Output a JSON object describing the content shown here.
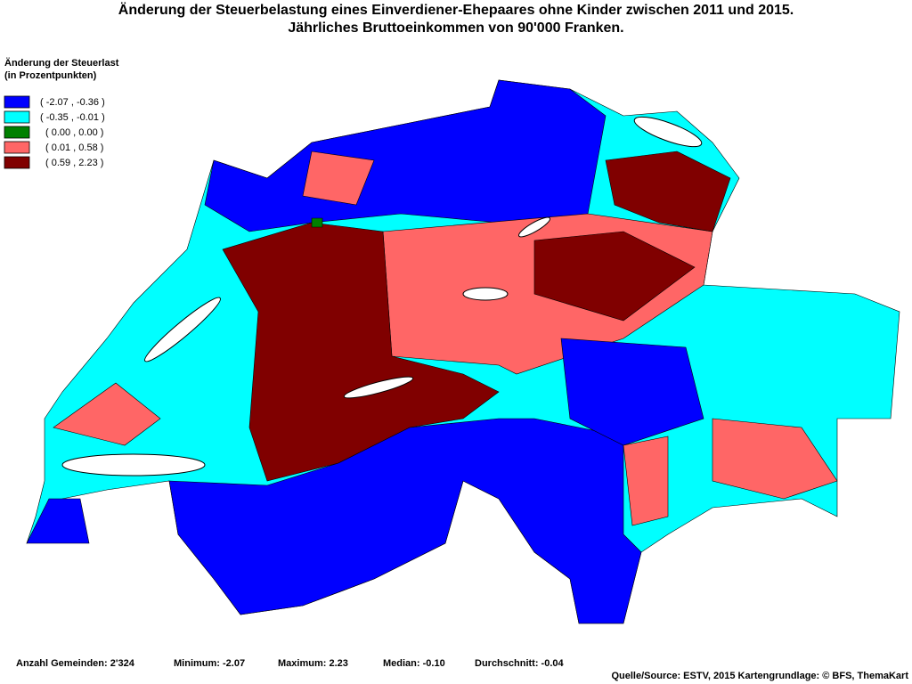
{
  "title": [
    "Änderung der Steuerbelastung eines Einverdiener-Ehepaares ohne Kinder zwischen 2011 und 2015.",
    "Jährliches Bruttoeinkommen von 90'000 Franken."
  ],
  "legend": {
    "title": "Änderung der Steuerlast",
    "subtitle": "(in Prozentpunkten)",
    "items": [
      {
        "label": "( -2.07 , -0.36 )",
        "color": "#0000ff"
      },
      {
        "label": "( -0.35 , -0.01 )",
        "color": "#00ffff"
      },
      {
        "label": "( 0.00 , 0.00 )",
        "color": "#008000"
      },
      {
        "label": "( 0.01 , 0.58 )",
        "color": "#ff6666"
      },
      {
        "label": "( 0.59 , 2.23 )",
        "color": "#800000"
      }
    ]
  },
  "footer": {
    "stats": [
      "Anzahl Gemeinden: 2'324",
      "Minimum: -2.07",
      "Maximum: 2.23",
      "Median: -0.10",
      "Durchschnitt: -0.04"
    ],
    "source": "Quelle/Source: ESTV, 2015 Kartengrundlage: © BFS, ThemaKart"
  }
}
